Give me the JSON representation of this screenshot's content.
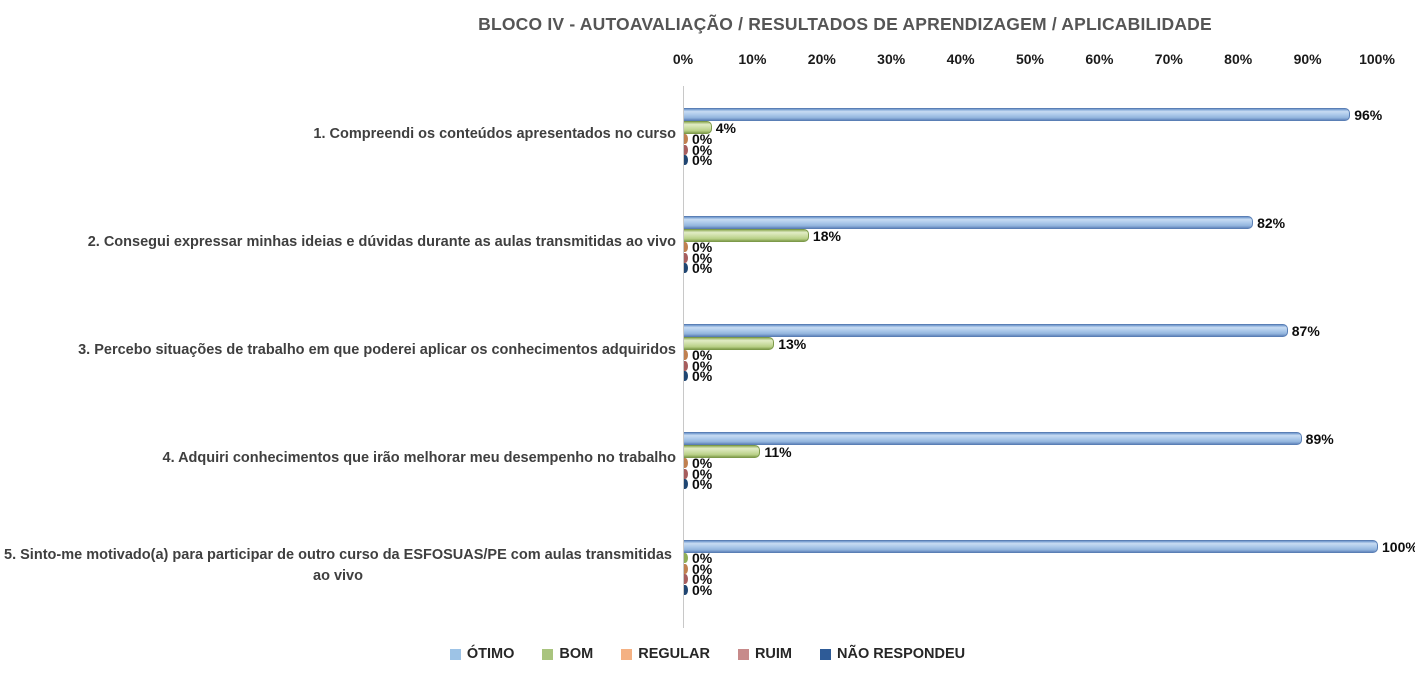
{
  "title": "BLOCO IV - AUTOAVALIAÇÃO / RESULTADOS DE APRENDIZAGEM / APLICABILIDADE",
  "x_axis": {
    "ticks": [
      "0%",
      "10%",
      "20%",
      "30%",
      "40%",
      "50%",
      "60%",
      "70%",
      "80%",
      "90%",
      "100%"
    ]
  },
  "legend": {
    "items": [
      "ÓTIMO",
      "BOM",
      "REGULAR",
      "RUIM",
      "NÃO RESPONDEU"
    ]
  },
  "colors": {
    "otimo": "#9DC3E6",
    "bom": "#A9C47E",
    "regular": "#F4B183",
    "ruim": "#C78A8A",
    "nao_respondeu": "#2E5B97",
    "axis_line": "#C8C8C8",
    "title_text": "#555555"
  },
  "chart_data": {
    "type": "bar",
    "orientation": "horizontal",
    "title": "BLOCO IV - AUTOAVALIAÇÃO / RESULTADOS DE APRENDIZAGEM / APLICABILIDADE",
    "categories": [
      "1. Compreendi os conteúdos apresentados no curso",
      "2. Consegui expressar minhas ideias e dúvidas durante as aulas transmitidas ao vivo",
      "3. Percebo situações de trabalho em que poderei aplicar os conhecimentos adquiridos",
      "4. Adquiri conhecimentos que irão melhorar meu desempenho no trabalho",
      "5. Sinto-me motivado(a) para participar de outro curso da ESFOSUAS/PE com aulas transmitidas ao vivo"
    ],
    "series": [
      {
        "name": "ÓTIMO",
        "color": "#9DC3E6",
        "values": [
          96,
          82,
          87,
          89,
          100
        ]
      },
      {
        "name": "BOM",
        "color": "#A9C47E",
        "values": [
          4,
          18,
          13,
          11,
          0
        ]
      },
      {
        "name": "REGULAR",
        "color": "#F4B183",
        "values": [
          0,
          0,
          0,
          0,
          0
        ]
      },
      {
        "name": "RUIM",
        "color": "#C78A8A",
        "values": [
          0,
          0,
          0,
          0,
          0
        ]
      },
      {
        "name": "NÃO RESPONDEU",
        "color": "#2E5B97",
        "values": [
          0,
          0,
          0,
          0,
          0
        ]
      }
    ],
    "data_labels": [
      "96%",
      "4%",
      "0%",
      "0%",
      "0%",
      "82%",
      "18%",
      "0%",
      "0%",
      "0%",
      "87%",
      "13%",
      "0%",
      "0%",
      "0%",
      "89%",
      "11%",
      "0%",
      "0%",
      "0%",
      "100%",
      "0%",
      "0%",
      "0%",
      "0%"
    ],
    "xlim": [
      0,
      100
    ],
    "tick_step": 10,
    "gridlines": false,
    "legend_position": "bottom"
  }
}
